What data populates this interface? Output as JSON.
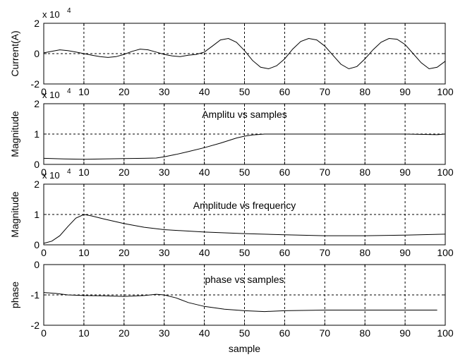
{
  "chart_data": [
    {
      "type": "line",
      "title": "",
      "xlabel": "",
      "ylabel": "Current(A)",
      "exponent_label": "x 10",
      "exponent_power": "4",
      "xlim": [
        0,
        100
      ],
      "ylim": [
        -2,
        2
      ],
      "xticks": [
        0,
        10,
        20,
        30,
        40,
        50,
        60,
        70,
        80,
        90,
        100
      ],
      "yticks": [
        -2,
        0,
        2
      ],
      "grid": true,
      "series": [
        {
          "x": [
            0,
            2,
            4,
            6,
            8,
            10,
            12,
            14,
            16,
            18,
            20,
            22,
            24,
            26,
            28,
            30,
            32,
            34,
            36,
            38,
            40,
            42,
            44,
            46,
            48,
            50,
            52,
            54,
            56,
            58,
            60,
            62,
            64,
            66,
            68,
            70,
            72,
            74,
            76,
            78,
            80,
            82,
            84,
            86,
            88,
            90,
            92,
            94,
            96,
            98,
            100
          ],
          "y": [
            0.05,
            0.15,
            0.25,
            0.2,
            0.1,
            0.0,
            -0.1,
            -0.2,
            -0.25,
            -0.2,
            -0.05,
            0.15,
            0.3,
            0.25,
            0.1,
            -0.05,
            -0.15,
            -0.2,
            -0.1,
            -0.05,
            0.1,
            0.5,
            0.9,
            1.0,
            0.75,
            0.2,
            -0.45,
            -0.9,
            -1.0,
            -0.8,
            -0.35,
            0.3,
            0.8,
            1.0,
            0.9,
            0.5,
            -0.1,
            -0.7,
            -1.0,
            -0.85,
            -0.35,
            0.25,
            0.75,
            1.0,
            0.95,
            0.6,
            0.0,
            -0.6,
            -1.0,
            -0.9,
            -0.5
          ]
        }
      ]
    },
    {
      "type": "line",
      "title": "Amplitu vs samples",
      "xlabel": "",
      "ylabel": "Magnitude",
      "exponent_label": "x 10",
      "exponent_power": "4",
      "xlim": [
        0,
        100
      ],
      "ylim": [
        0,
        2
      ],
      "xticks": [
        0,
        10,
        20,
        30,
        40,
        50,
        60,
        70,
        80,
        90,
        100
      ],
      "yticks": [
        0,
        1,
        2
      ],
      "grid": true,
      "series": [
        {
          "x": [
            0,
            5,
            10,
            15,
            20,
            25,
            28,
            30,
            33,
            36,
            40,
            44,
            48,
            50,
            52,
            55,
            60,
            70,
            80,
            90,
            98,
            100
          ],
          "y": [
            0.2,
            0.18,
            0.17,
            0.18,
            0.19,
            0.2,
            0.21,
            0.25,
            0.33,
            0.42,
            0.55,
            0.7,
            0.87,
            0.93,
            0.97,
            1.0,
            1.0,
            1.0,
            1.0,
            1.0,
            0.98,
            1.0
          ]
        }
      ]
    },
    {
      "type": "line",
      "title": "Amplitude vs frequency",
      "xlabel": "",
      "ylabel": "Magnitude",
      "exponent_label": "x 10",
      "exponent_power": "4",
      "xlim": [
        0,
        100
      ],
      "ylim": [
        0,
        2
      ],
      "xticks": [
        0,
        10,
        20,
        30,
        40,
        50,
        60,
        70,
        80,
        90,
        100
      ],
      "yticks": [
        0,
        1,
        2
      ],
      "grid": true,
      "series": [
        {
          "x": [
            0,
            2,
            4,
            6,
            8,
            10,
            12,
            15,
            20,
            25,
            30,
            40,
            50,
            60,
            70,
            80,
            90,
            100
          ],
          "y": [
            0.05,
            0.12,
            0.3,
            0.6,
            0.88,
            1.0,
            0.95,
            0.85,
            0.7,
            0.58,
            0.5,
            0.42,
            0.37,
            0.33,
            0.3,
            0.3,
            0.32,
            0.35
          ]
        }
      ]
    },
    {
      "type": "line",
      "title": "phase vs samples",
      "xlabel": "sample",
      "ylabel": "phase",
      "xlim": [
        0,
        100
      ],
      "ylim": [
        -2,
        0
      ],
      "xticks": [
        0,
        10,
        20,
        30,
        40,
        50,
        60,
        70,
        80,
        90,
        100
      ],
      "yticks": [
        -2,
        -1,
        0
      ],
      "grid": true,
      "series": [
        {
          "x": [
            0,
            3,
            6,
            10,
            15,
            20,
            25,
            28,
            30,
            33,
            36,
            40,
            45,
            50,
            55,
            60,
            70,
            80,
            90,
            98
          ],
          "y": [
            -0.92,
            -0.95,
            -1.0,
            -1.02,
            -1.03,
            -1.05,
            -1.02,
            -0.98,
            -1.0,
            -1.1,
            -1.25,
            -1.38,
            -1.47,
            -1.52,
            -1.55,
            -1.52,
            -1.5,
            -1.5,
            -1.5,
            -1.5
          ]
        }
      ]
    }
  ]
}
